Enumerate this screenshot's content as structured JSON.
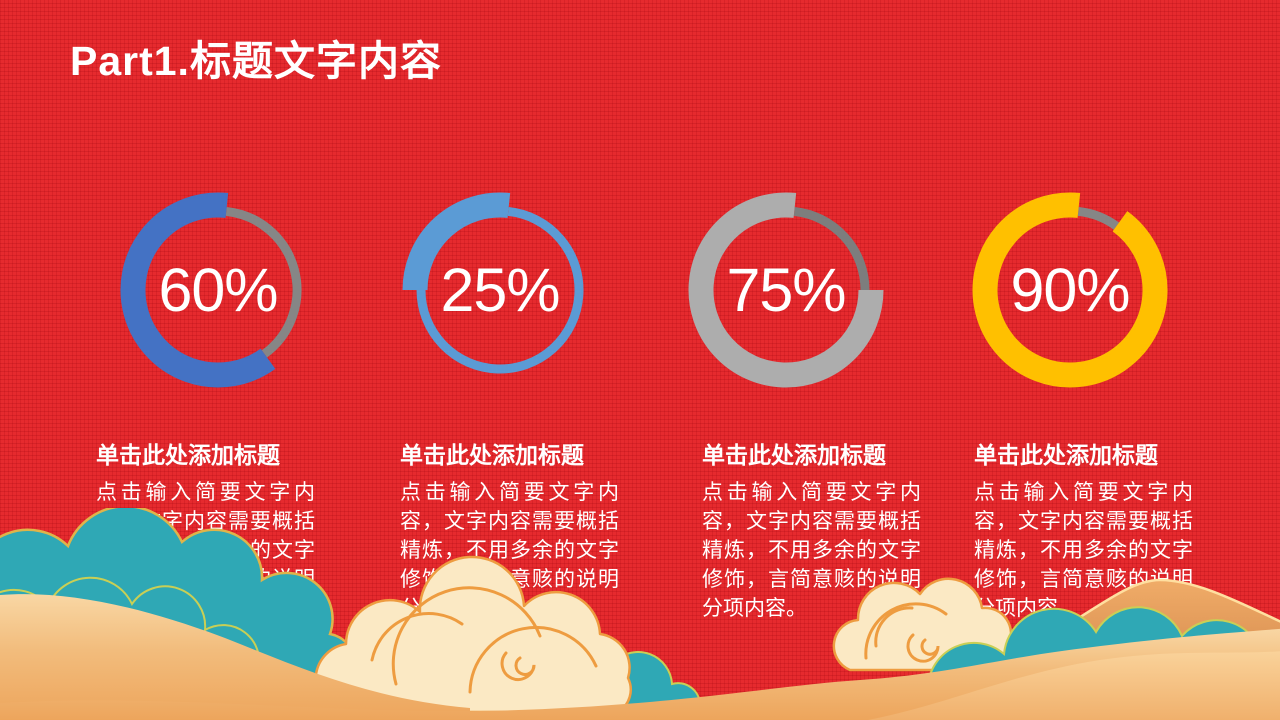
{
  "slide": {
    "title": "Part1.标题文字内容",
    "background_color": "#E62A2E",
    "title_color": "#FFFFFF"
  },
  "chart_data": {
    "type": "donut",
    "description": "Four donut progress rings; thick arc sweeps counterclockwise from the top, thin track arc fills the remainder",
    "start_position": "top",
    "direction": "counterclockwise",
    "legend_position": "none",
    "items": [
      {
        "percent": 60,
        "label": "60%",
        "arc_color": "#4472C4",
        "track_color": "#868686",
        "heading": "单击此处添加标题",
        "body": "点击输入简要文字内容，文字内容需要概括精炼，不用多余的文字修饰，言简意赅的说明分项内容。"
      },
      {
        "percent": 25,
        "label": "25%",
        "arc_color": "#5B9BD5",
        "track_color": "#5B9BD5",
        "heading": "单击此处添加标题",
        "body": "点击输入简要文字内容，文字内容需要概括精炼，不用多余的文字修饰，言简意赅的说明分项内容。"
      },
      {
        "percent": 75,
        "label": "75%",
        "arc_color": "#ADADAD",
        "track_color": "#7D7D7D",
        "heading": "单击此处添加标题",
        "body": "点击输入简要文字内容，文字内容需要概括精炼，不用多余的文字修饰，言简意赅的说明分项内容。"
      },
      {
        "percent": 90,
        "label": "90%",
        "arc_color": "#FFC000",
        "track_color": "#868686",
        "heading": "单击此处添加标题",
        "body": "点击输入简要文字内容，文字内容需要概括精炼，不用多余的文字修饰，言简意赅的说明分项内容。"
      }
    ]
  },
  "decor_colors": {
    "teal": "#2FA8B5",
    "teal_line": "#C9CF55",
    "teal_line_gold": "#DFB44A",
    "cream": "#FBE9C4",
    "cream_line": "#EE9C40",
    "sand_hi": "#F9D7A4",
    "sand": "#F2BC7C",
    "sand_lo": "#EDA55C",
    "sand2_hi": "#FAD39B",
    "sand2": "#F0B06C",
    "mountain_hi": "#F0AC68",
    "mountain_lo": "#C97B41",
    "mountain_rim": "#FFDFA0"
  }
}
